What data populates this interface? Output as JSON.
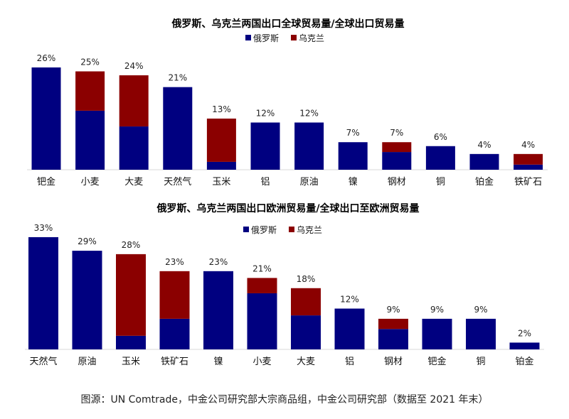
{
  "colors": {
    "russia": "#000080",
    "ukraine": "#8B0000"
  },
  "caption": "图源：UN Comtrade，中金公司研究部大宗商品组，中金公司研究部（数据至 2021 年末）",
  "chart_data": [
    {
      "type": "bar",
      "stacked": true,
      "title": "俄罗斯、乌克兰两国出口全球贸易量/全球出口贸易量",
      "legend_position": "top-center",
      "categories": [
        "钯金",
        "小麦",
        "大麦",
        "天然气",
        "玉米",
        "铝",
        "原油",
        "镍",
        "钢材",
        "铜",
        "铂金",
        "铁矿石"
      ],
      "series": [
        {
          "name": "俄罗斯",
          "values": [
            26,
            15,
            11,
            21,
            2,
            12,
            12,
            7,
            4.5,
            6,
            4,
            1.3
          ]
        },
        {
          "name": "乌克兰",
          "values": [
            0,
            10,
            13,
            0,
            11,
            0,
            0,
            0,
            2.5,
            0,
            0,
            2.7
          ]
        }
      ],
      "data_labels": [
        "26%",
        "25%",
        "24%",
        "21%",
        "13%",
        "12%",
        "12%",
        "7%",
        "7%",
        "6%",
        "4%",
        "4%"
      ],
      "ylim": [
        0,
        28
      ],
      "grid": false
    },
    {
      "type": "bar",
      "stacked": true,
      "title": "俄罗斯、乌克兰两国出口欧洲贸易量/全球出口至欧洲贸易量",
      "legend_position": "top-center",
      "categories": [
        "天然气",
        "原油",
        "玉米",
        "铁矿石",
        "镍",
        "小麦",
        "大麦",
        "铝",
        "钢材",
        "钯金",
        "铜",
        "铂金"
      ],
      "series": [
        {
          "name": "俄罗斯",
          "values": [
            33,
            29,
            4,
            9,
            23,
            16.5,
            10,
            12,
            6,
            9,
            9,
            2
          ]
        },
        {
          "name": "乌克兰",
          "values": [
            0,
            0,
            24,
            14,
            0,
            4.5,
            8,
            0,
            3,
            0,
            0,
            0
          ]
        }
      ],
      "data_labels": [
        "33%",
        "29%",
        "28%",
        "23%",
        "23%",
        "21%",
        "18%",
        "12%",
        "9%",
        "9%",
        "9%",
        "2%"
      ],
      "ylim": [
        0,
        35
      ],
      "grid": false
    }
  ]
}
